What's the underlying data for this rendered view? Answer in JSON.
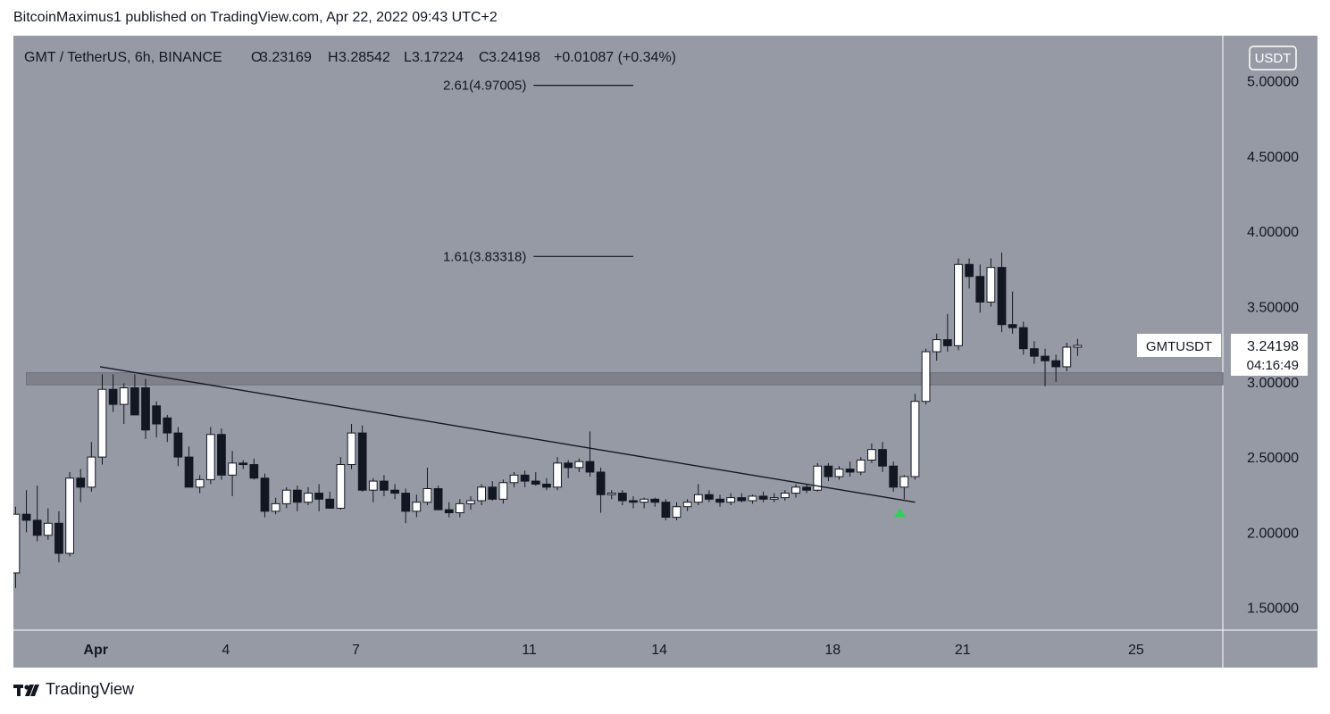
{
  "header": {
    "publisher_line": "BitcoinMaximus1 published on TradingView.com, Apr 22, 2022 09:43 UTC+2"
  },
  "footer": {
    "brand": "TradingView"
  },
  "colors": {
    "plot_background": "#969aa4",
    "up_candle": "#ffffff",
    "down_candle": "#131722",
    "wick": "#131722",
    "resistance_band": "#7e818a",
    "trendline": "#131722",
    "breakout_marker": "#2fd158",
    "axis_text": "#131722",
    "price_label_bg": "#ffffff"
  },
  "icons": {
    "breakout_marker": "green-triangle-up-icon",
    "brand_logo": "tradingview-logo-icon"
  },
  "chart_data": {
    "type": "candlestick",
    "symbol": "GMT / TetherUS, 6h, BINANCE",
    "legend": {
      "open_label": "O",
      "open": "3.23169",
      "high_label": "H",
      "high": "3.28542",
      "low_label": "L",
      "low": "3.17224",
      "close_label": "C",
      "close": "3.24198",
      "change": "+0.01087 (+0.34%)"
    },
    "currency_badge": "USDT",
    "y_ticks": [
      {
        "value": 5.0,
        "label": "5.00000"
      },
      {
        "value": 4.5,
        "label": "4.50000"
      },
      {
        "value": 4.0,
        "label": "4.00000"
      },
      {
        "value": 3.5,
        "label": "3.50000"
      },
      {
        "value": 3.0,
        "label": "3.00000"
      },
      {
        "value": 2.5,
        "label": "2.50000"
      },
      {
        "value": 2.0,
        "label": "2.00000"
      },
      {
        "value": 1.5,
        "label": "1.50000"
      }
    ],
    "x_ticks": [
      {
        "day": 1,
        "label": "Apr"
      },
      {
        "day": 4,
        "label": "4"
      },
      {
        "day": 7,
        "label": "7"
      },
      {
        "day": 11,
        "label": "11"
      },
      {
        "day": 14,
        "label": "14"
      },
      {
        "day": 18,
        "label": "18"
      },
      {
        "day": 21,
        "label": "21"
      },
      {
        "day": 25,
        "label": "25"
      }
    ],
    "x_range_days": [
      -0.9,
      27.0
    ],
    "y_range": [
      1.35,
      5.3
    ],
    "candles": [
      {
        "d": -0.85,
        "o": 1.73,
        "h": 2.17,
        "l": 1.63,
        "c": 2.12
      },
      {
        "d": -0.6,
        "o": 2.12,
        "h": 2.28,
        "l": 2.0,
        "c": 2.08
      },
      {
        "d": -0.35,
        "o": 2.08,
        "h": 2.31,
        "l": 1.94,
        "c": 1.98
      },
      {
        "d": -0.1,
        "o": 1.98,
        "h": 2.16,
        "l": 1.95,
        "c": 2.06
      },
      {
        "d": 0.15,
        "o": 2.06,
        "h": 2.14,
        "l": 1.8,
        "c": 1.86
      },
      {
        "d": 0.4,
        "o": 1.86,
        "h": 2.4,
        "l": 1.84,
        "c": 2.36
      },
      {
        "d": 0.65,
        "o": 2.36,
        "h": 2.42,
        "l": 2.2,
        "c": 2.3
      },
      {
        "d": 0.9,
        "o": 2.3,
        "h": 2.6,
        "l": 2.27,
        "c": 2.5
      },
      {
        "d": 1.15,
        "o": 2.5,
        "h": 3.05,
        "l": 2.45,
        "c": 2.95
      },
      {
        "d": 1.4,
        "o": 2.95,
        "h": 3.05,
        "l": 2.8,
        "c": 2.85
      },
      {
        "d": 1.65,
        "o": 2.85,
        "h": 2.99,
        "l": 2.72,
        "c": 2.96
      },
      {
        "d": 1.9,
        "o": 2.96,
        "h": 3.05,
        "l": 2.78,
        "c": 2.78
      },
      {
        "d": 2.15,
        "o": 2.96,
        "h": 3.02,
        "l": 2.62,
        "c": 2.68
      },
      {
        "d": 2.4,
        "o": 2.84,
        "h": 2.87,
        "l": 2.63,
        "c": 2.72
      },
      {
        "d": 2.65,
        "o": 2.76,
        "h": 2.78,
        "l": 2.6,
        "c": 2.66
      },
      {
        "d": 2.9,
        "o": 2.66,
        "h": 2.7,
        "l": 2.44,
        "c": 2.5
      },
      {
        "d": 3.15,
        "o": 2.5,
        "h": 2.57,
        "l": 2.3,
        "c": 2.3
      },
      {
        "d": 3.4,
        "o": 2.3,
        "h": 2.38,
        "l": 2.26,
        "c": 2.35
      },
      {
        "d": 3.65,
        "o": 2.35,
        "h": 2.7,
        "l": 2.32,
        "c": 2.65
      },
      {
        "d": 3.9,
        "o": 2.65,
        "h": 2.69,
        "l": 2.35,
        "c": 2.38
      },
      {
        "d": 4.15,
        "o": 2.38,
        "h": 2.54,
        "l": 2.24,
        "c": 2.46
      },
      {
        "d": 4.4,
        "o": 2.46,
        "h": 2.48,
        "l": 2.42,
        "c": 2.45
      },
      {
        "d": 4.65,
        "o": 2.45,
        "h": 2.49,
        "l": 2.35,
        "c": 2.36
      },
      {
        "d": 4.9,
        "o": 2.36,
        "h": 2.39,
        "l": 2.1,
        "c": 2.14
      },
      {
        "d": 5.15,
        "o": 2.14,
        "h": 2.23,
        "l": 2.12,
        "c": 2.19
      },
      {
        "d": 5.4,
        "o": 2.19,
        "h": 2.3,
        "l": 2.16,
        "c": 2.28
      },
      {
        "d": 5.65,
        "o": 2.28,
        "h": 2.31,
        "l": 2.14,
        "c": 2.2
      },
      {
        "d": 5.9,
        "o": 2.2,
        "h": 2.3,
        "l": 2.18,
        "c": 2.26
      },
      {
        "d": 6.15,
        "o": 2.26,
        "h": 2.32,
        "l": 2.14,
        "c": 2.22
      },
      {
        "d": 6.4,
        "o": 2.22,
        "h": 2.27,
        "l": 2.17,
        "c": 2.16
      },
      {
        "d": 6.65,
        "o": 2.16,
        "h": 2.5,
        "l": 2.15,
        "c": 2.45
      },
      {
        "d": 6.9,
        "o": 2.45,
        "h": 2.72,
        "l": 2.42,
        "c": 2.66
      },
      {
        "d": 7.15,
        "o": 2.66,
        "h": 2.71,
        "l": 2.27,
        "c": 2.28
      },
      {
        "d": 7.4,
        "o": 2.28,
        "h": 2.36,
        "l": 2.2,
        "c": 2.34
      },
      {
        "d": 7.65,
        "o": 2.34,
        "h": 2.38,
        "l": 2.24,
        "c": 2.28
      },
      {
        "d": 7.9,
        "o": 2.28,
        "h": 2.32,
        "l": 2.22,
        "c": 2.26
      },
      {
        "d": 8.15,
        "o": 2.26,
        "h": 2.29,
        "l": 2.06,
        "c": 2.14
      },
      {
        "d": 8.4,
        "o": 2.14,
        "h": 2.25,
        "l": 2.1,
        "c": 2.2
      },
      {
        "d": 8.65,
        "o": 2.2,
        "h": 2.43,
        "l": 2.18,
        "c": 2.29
      },
      {
        "d": 8.9,
        "o": 2.29,
        "h": 2.31,
        "l": 2.15,
        "c": 2.15
      },
      {
        "d": 9.15,
        "o": 2.15,
        "h": 2.2,
        "l": 2.1,
        "c": 2.13
      },
      {
        "d": 9.4,
        "o": 2.13,
        "h": 2.22,
        "l": 2.1,
        "c": 2.19
      },
      {
        "d": 9.65,
        "o": 2.19,
        "h": 2.24,
        "l": 2.15,
        "c": 2.21
      },
      {
        "d": 9.9,
        "o": 2.21,
        "h": 2.32,
        "l": 2.18,
        "c": 2.3
      },
      {
        "d": 10.15,
        "o": 2.3,
        "h": 2.34,
        "l": 2.21,
        "c": 2.22
      },
      {
        "d": 10.4,
        "o": 2.22,
        "h": 2.35,
        "l": 2.19,
        "c": 2.33
      },
      {
        "d": 10.65,
        "o": 2.33,
        "h": 2.4,
        "l": 2.3,
        "c": 2.38
      },
      {
        "d": 10.9,
        "o": 2.38,
        "h": 2.41,
        "l": 2.3,
        "c": 2.34
      },
      {
        "d": 11.15,
        "o": 2.34,
        "h": 2.4,
        "l": 2.31,
        "c": 2.32
      },
      {
        "d": 11.4,
        "o": 2.32,
        "h": 2.36,
        "l": 2.28,
        "c": 2.3
      },
      {
        "d": 11.65,
        "o": 2.3,
        "h": 2.5,
        "l": 2.28,
        "c": 2.46
      },
      {
        "d": 11.9,
        "o": 2.46,
        "h": 2.48,
        "l": 2.36,
        "c": 2.43
      },
      {
        "d": 12.15,
        "o": 2.43,
        "h": 2.49,
        "l": 2.4,
        "c": 2.47
      },
      {
        "d": 12.4,
        "o": 2.47,
        "h": 2.67,
        "l": 2.37,
        "c": 2.4
      },
      {
        "d": 12.65,
        "o": 2.4,
        "h": 2.43,
        "l": 2.13,
        "c": 2.25
      },
      {
        "d": 12.9,
        "o": 2.25,
        "h": 2.28,
        "l": 2.22,
        "c": 2.26
      },
      {
        "d": 13.15,
        "o": 2.26,
        "h": 2.28,
        "l": 2.18,
        "c": 2.21
      },
      {
        "d": 13.4,
        "o": 2.21,
        "h": 2.24,
        "l": 2.16,
        "c": 2.2
      },
      {
        "d": 13.65,
        "o": 2.2,
        "h": 2.23,
        "l": 2.16,
        "c": 2.22
      },
      {
        "d": 13.9,
        "o": 2.22,
        "h": 2.23,
        "l": 2.17,
        "c": 2.2
      },
      {
        "d": 14.15,
        "o": 2.2,
        "h": 2.22,
        "l": 2.08,
        "c": 2.1
      },
      {
        "d": 14.4,
        "o": 2.1,
        "h": 2.2,
        "l": 2.08,
        "c": 2.17
      },
      {
        "d": 14.65,
        "o": 2.17,
        "h": 2.22,
        "l": 2.14,
        "c": 2.2
      },
      {
        "d": 14.9,
        "o": 2.2,
        "h": 2.32,
        "l": 2.18,
        "c": 2.25
      },
      {
        "d": 15.15,
        "o": 2.25,
        "h": 2.28,
        "l": 2.2,
        "c": 2.22
      },
      {
        "d": 15.4,
        "o": 2.22,
        "h": 2.25,
        "l": 2.17,
        "c": 2.2
      },
      {
        "d": 15.65,
        "o": 2.2,
        "h": 2.26,
        "l": 2.18,
        "c": 2.23
      },
      {
        "d": 15.9,
        "o": 2.23,
        "h": 2.26,
        "l": 2.2,
        "c": 2.21
      },
      {
        "d": 16.15,
        "o": 2.21,
        "h": 2.25,
        "l": 2.19,
        "c": 2.24
      },
      {
        "d": 16.4,
        "o": 2.24,
        "h": 2.27,
        "l": 2.2,
        "c": 2.22
      },
      {
        "d": 16.65,
        "o": 2.22,
        "h": 2.26,
        "l": 2.2,
        "c": 2.23
      },
      {
        "d": 16.9,
        "o": 2.23,
        "h": 2.28,
        "l": 2.21,
        "c": 2.26
      },
      {
        "d": 17.15,
        "o": 2.26,
        "h": 2.32,
        "l": 2.23,
        "c": 2.3
      },
      {
        "d": 17.4,
        "o": 2.3,
        "h": 2.32,
        "l": 2.26,
        "c": 2.28
      },
      {
        "d": 17.65,
        "o": 2.28,
        "h": 2.46,
        "l": 2.27,
        "c": 2.44
      },
      {
        "d": 17.9,
        "o": 2.44,
        "h": 2.46,
        "l": 2.34,
        "c": 2.37
      },
      {
        "d": 18.15,
        "o": 2.37,
        "h": 2.44,
        "l": 2.35,
        "c": 2.42
      },
      {
        "d": 18.4,
        "o": 2.42,
        "h": 2.47,
        "l": 2.37,
        "c": 2.4
      },
      {
        "d": 18.65,
        "o": 2.4,
        "h": 2.5,
        "l": 2.38,
        "c": 2.48
      },
      {
        "d": 18.9,
        "o": 2.48,
        "h": 2.59,
        "l": 2.46,
        "c": 2.55
      },
      {
        "d": 19.15,
        "o": 2.55,
        "h": 2.6,
        "l": 2.4,
        "c": 2.44
      },
      {
        "d": 19.4,
        "o": 2.44,
        "h": 2.47,
        "l": 2.27,
        "c": 2.3
      },
      {
        "d": 19.65,
        "o": 2.3,
        "h": 2.38,
        "l": 2.22,
        "c": 2.37
      },
      {
        "d": 19.9,
        "o": 2.37,
        "h": 2.92,
        "l": 2.35,
        "c": 2.87
      },
      {
        "d": 20.15,
        "o": 2.87,
        "h": 3.22,
        "l": 2.85,
        "c": 3.2
      },
      {
        "d": 20.4,
        "o": 3.2,
        "h": 3.32,
        "l": 3.14,
        "c": 3.28
      },
      {
        "d": 20.65,
        "o": 3.28,
        "h": 3.45,
        "l": 3.2,
        "c": 3.24
      },
      {
        "d": 20.9,
        "o": 3.24,
        "h": 3.82,
        "l": 3.21,
        "c": 3.78
      },
      {
        "d": 21.15,
        "o": 3.78,
        "h": 3.82,
        "l": 3.62,
        "c": 3.7
      },
      {
        "d": 21.4,
        "o": 3.7,
        "h": 3.78,
        "l": 3.46,
        "c": 3.53
      },
      {
        "d": 21.65,
        "o": 3.53,
        "h": 3.82,
        "l": 3.5,
        "c": 3.76
      },
      {
        "d": 21.9,
        "o": 3.76,
        "h": 3.86,
        "l": 3.33,
        "c": 3.38
      },
      {
        "d": 22.15,
        "o": 3.38,
        "h": 3.6,
        "l": 3.32,
        "c": 3.36
      },
      {
        "d": 22.4,
        "o": 3.36,
        "h": 3.4,
        "l": 3.18,
        "c": 3.22
      },
      {
        "d": 22.65,
        "o": 3.22,
        "h": 3.27,
        "l": 3.12,
        "c": 3.17
      },
      {
        "d": 22.9,
        "o": 3.17,
        "h": 3.22,
        "l": 2.97,
        "c": 3.14
      },
      {
        "d": 23.15,
        "o": 3.14,
        "h": 3.18,
        "l": 3.0,
        "c": 3.1
      },
      {
        "d": 23.4,
        "o": 3.1,
        "h": 3.26,
        "l": 3.07,
        "c": 3.23
      },
      {
        "d": 23.65,
        "o": 3.23,
        "h": 3.28542,
        "l": 3.17224,
        "c": 3.24198
      }
    ],
    "resistance_zone": {
      "low": 2.98,
      "high": 3.06,
      "from_day": -0.6,
      "to_day": 27.0
    },
    "trendline": {
      "from": {
        "d": 1.1,
        "price": 3.1
      },
      "to": {
        "d": 19.9,
        "price": 2.2
      }
    },
    "breakout_marker_at": {
      "d": 19.55,
      "price": 2.13
    },
    "fib_levels": [
      {
        "label": "2.61(4.97005)",
        "price": 4.97005,
        "from_day": 11.1,
        "to_day": 13.4
      },
      {
        "label": "1.61(3.83318)",
        "price": 3.83318,
        "from_day": 11.1,
        "to_day": 13.4
      }
    ],
    "last_price_label": {
      "symbol": "GMTUSDT",
      "price": "3.24198",
      "countdown": "04:16:49"
    }
  }
}
